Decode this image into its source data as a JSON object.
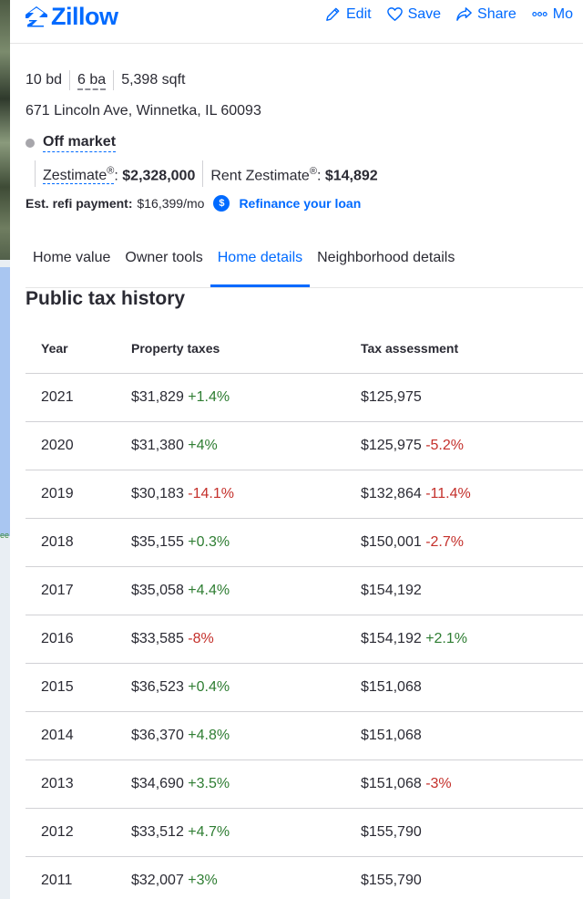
{
  "brand": {
    "name": "Zillow",
    "color": "#006aff"
  },
  "actions": [
    {
      "label": "Edit",
      "icon": "pencil-icon"
    },
    {
      "label": "Save",
      "icon": "heart-icon"
    },
    {
      "label": "Share",
      "icon": "share-arrow-icon"
    },
    {
      "label": "Mo",
      "icon": "more-dots-icon"
    }
  ],
  "map_label": "ee",
  "facts": {
    "beds": "10 bd",
    "baths": "6 ba",
    "sqft": "5,398 sqft"
  },
  "address": "671 Lincoln Ave, Winnetka, IL 60093",
  "status": "Off market",
  "zestimate": {
    "label": "Zestimate",
    "mark": "®",
    "colon": ":",
    "value": "$2,328,000"
  },
  "rent_zestimate": {
    "label": "Rent Zestimate",
    "mark": "®",
    "colon": ":",
    "value": "$14,892"
  },
  "refi": {
    "label": "Est. refi payment:",
    "value": "$16,399/mo",
    "icon_glyph": "$",
    "link": "Refinance your loan"
  },
  "tabs": [
    {
      "label": "Home value",
      "active": false
    },
    {
      "label": "Owner tools",
      "active": false
    },
    {
      "label": "Home details",
      "active": true
    },
    {
      "label": "Neighborhood details",
      "active": false
    }
  ],
  "section_title": "Public tax history",
  "table": {
    "headers": [
      "Year",
      "Property taxes",
      "Tax assessment"
    ],
    "rows": [
      {
        "year": "2021",
        "tax": "$31,829",
        "tax_change": "+1.4%",
        "assess": "$125,975",
        "assess_change": ""
      },
      {
        "year": "2020",
        "tax": "$31,380",
        "tax_change": "+4%",
        "assess": "$125,975",
        "assess_change": "-5.2%"
      },
      {
        "year": "2019",
        "tax": "$30,183",
        "tax_change": "-14.1%",
        "assess": "$132,864",
        "assess_change": "-11.4%"
      },
      {
        "year": "2018",
        "tax": "$35,155",
        "tax_change": "+0.3%",
        "assess": "$150,001",
        "assess_change": "-2.7%"
      },
      {
        "year": "2017",
        "tax": "$35,058",
        "tax_change": "+4.4%",
        "assess": "$154,192",
        "assess_change": ""
      },
      {
        "year": "2016",
        "tax": "$33,585",
        "tax_change": "-8%",
        "assess": "$154,192",
        "assess_change": "+2.1%"
      },
      {
        "year": "2015",
        "tax": "$36,523",
        "tax_change": "+0.4%",
        "assess": "$151,068",
        "assess_change": ""
      },
      {
        "year": "2014",
        "tax": "$36,370",
        "tax_change": "+4.8%",
        "assess": "$151,068",
        "assess_change": ""
      },
      {
        "year": "2013",
        "tax": "$34,690",
        "tax_change": "+3.5%",
        "assess": "$151,068",
        "assess_change": "-3%"
      },
      {
        "year": "2012",
        "tax": "$33,512",
        "tax_change": "+4.7%",
        "assess": "$155,790",
        "assess_change": ""
      },
      {
        "year": "2011",
        "tax": "$32,007",
        "tax_change": "+3%",
        "assess": "$155,790",
        "assess_change": ""
      }
    ]
  },
  "colors": {
    "positive": "#2e7d32",
    "negative": "#c4302b",
    "accent": "#006aff"
  }
}
